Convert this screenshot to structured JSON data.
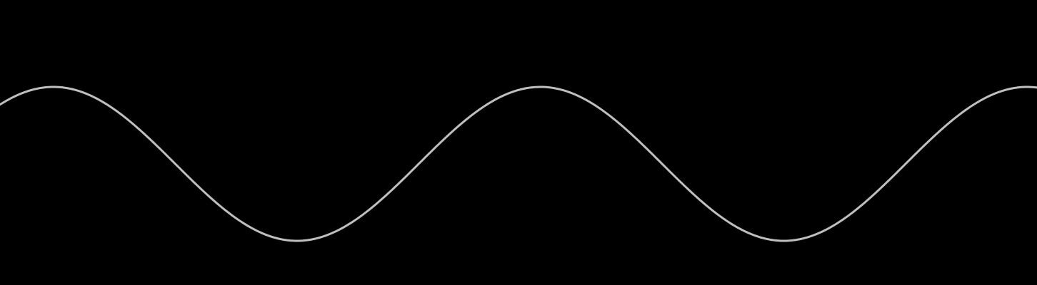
{
  "canvas": {
    "background_color": "#000000"
  },
  "waveform": {
    "shape": "sine",
    "stroke_color": "#BFBFBF",
    "cycles_visible": 2.13,
    "phase_start_fraction": 0.89
  }
}
